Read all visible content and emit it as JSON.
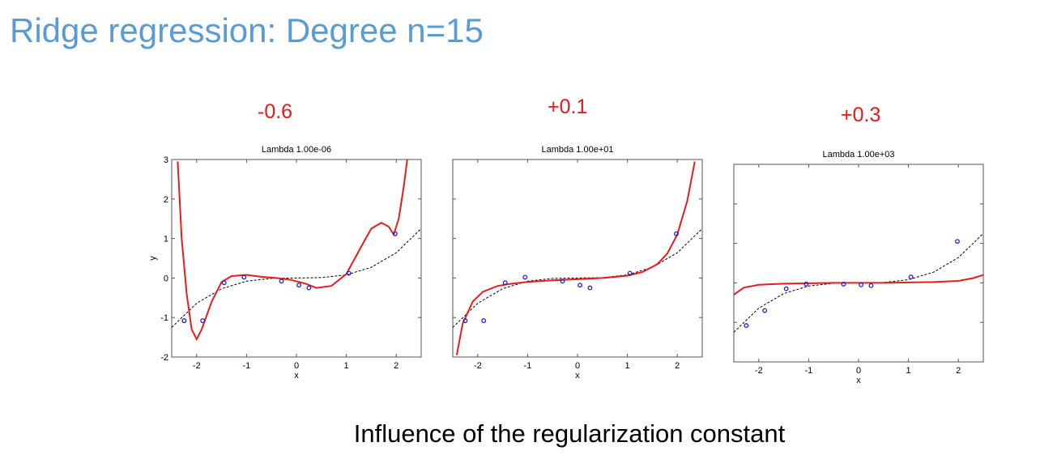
{
  "slide": {
    "title": "Ridge regression: Degree n=15",
    "caption": "Influence of the regularization constant"
  },
  "colors": {
    "title": "#5b9bd5",
    "fit": "#e81c1c",
    "truth": "#000000",
    "points": "#1f1fd6",
    "score": "#e81c1c"
  },
  "scores": [
    "-0.6",
    "+0.1",
    "+0.3"
  ],
  "chart_data": [
    {
      "type": "line",
      "title": "Lambda 1.00e-06",
      "xlabel": "x",
      "ylabel": "y",
      "xlim": [
        -2.5,
        2.5
      ],
      "ylim": [
        -2,
        3
      ],
      "xticks": [
        -2,
        -1,
        0,
        1,
        2
      ],
      "yticks": [
        -2,
        -1,
        0,
        1,
        2,
        3
      ],
      "points": {
        "x": [
          -2.25,
          -1.88,
          -1.45,
          -1.05,
          -0.3,
          0.05,
          0.25,
          1.05,
          1.98
        ],
        "y": [
          -1.08,
          -1.08,
          -0.12,
          0.02,
          -0.08,
          -0.18,
          -0.25,
          0.12,
          1.12
        ]
      },
      "series": [
        {
          "style": "dashed",
          "x": [
            -2.5,
            -2.0,
            -1.5,
            -1.0,
            -0.5,
            0.0,
            0.5,
            1.0,
            1.5,
            2.0,
            2.5
          ],
          "y": [
            -1.25,
            -0.64,
            -0.27,
            -0.08,
            -0.01,
            0.0,
            0.01,
            0.08,
            0.27,
            0.64,
            1.25
          ]
        },
        {
          "style": "solid",
          "x": [
            -2.38,
            -2.3,
            -2.2,
            -2.1,
            -2.0,
            -1.9,
            -1.7,
            -1.5,
            -1.3,
            -1.0,
            -0.7,
            -0.4,
            -0.1,
            0.2,
            0.4,
            0.7,
            1.0,
            1.3,
            1.5,
            1.7,
            1.85,
            1.95,
            2.05,
            2.15,
            2.22
          ],
          "y": [
            2.95,
            1.0,
            -0.4,
            -1.3,
            -1.55,
            -1.3,
            -0.6,
            -0.1,
            0.05,
            0.08,
            0.03,
            0.0,
            -0.05,
            -0.15,
            -0.25,
            -0.2,
            0.1,
            0.8,
            1.25,
            1.4,
            1.3,
            1.1,
            1.5,
            2.3,
            3.0
          ]
        }
      ]
    },
    {
      "type": "line",
      "title": "Lambda 1.00e+01",
      "xlabel": "x",
      "ylabel": "",
      "xlim": [
        -2.5,
        2.5
      ],
      "ylim": [
        -2,
        3
      ],
      "xticks": [
        -2,
        -1,
        0,
        1,
        2
      ],
      "yticks": [
        -2,
        -1,
        0,
        1,
        2,
        3
      ],
      "points": {
        "x": [
          -2.25,
          -1.88,
          -1.45,
          -1.05,
          -0.3,
          0.05,
          0.25,
          1.05,
          1.98
        ],
        "y": [
          -1.08,
          -1.08,
          -0.12,
          0.02,
          -0.08,
          -0.18,
          -0.25,
          0.12,
          1.12
        ]
      },
      "series": [
        {
          "style": "dashed",
          "x": [
            -2.5,
            -2.0,
            -1.5,
            -1.0,
            -0.5,
            0.0,
            0.5,
            1.0,
            1.5,
            2.0,
            2.5
          ],
          "y": [
            -1.25,
            -0.64,
            -0.27,
            -0.08,
            -0.01,
            0.0,
            0.01,
            0.08,
            0.27,
            0.64,
            1.25
          ]
        },
        {
          "style": "solid",
          "x": [
            -2.42,
            -2.3,
            -2.1,
            -1.9,
            -1.6,
            -1.3,
            -1.0,
            -0.5,
            0.0,
            0.5,
            1.0,
            1.3,
            1.6,
            1.8,
            2.0,
            2.2,
            2.35
          ],
          "y": [
            -1.95,
            -1.15,
            -0.6,
            -0.35,
            -0.2,
            -0.14,
            -0.1,
            -0.06,
            -0.03,
            0.0,
            0.06,
            0.15,
            0.35,
            0.62,
            1.1,
            1.95,
            2.95
          ]
        }
      ]
    },
    {
      "type": "line",
      "title": "Lambda 1.00e+03",
      "xlabel": "x",
      "ylabel": "",
      "xlim": [
        -2.5,
        2.5
      ],
      "ylim": [
        -2,
        3
      ],
      "xticks": [
        -2,
        -1,
        0,
        1,
        2
      ],
      "yticks": [
        -2,
        -1,
        0,
        1,
        2,
        3
      ],
      "points": {
        "x": [
          -2.25,
          -1.88,
          -1.45,
          -1.05,
          -0.3,
          0.05,
          0.25,
          1.05,
          1.98
        ],
        "y": [
          -1.08,
          -0.7,
          -0.15,
          -0.03,
          -0.03,
          -0.05,
          -0.07,
          0.15,
          1.05
        ]
      },
      "series": [
        {
          "style": "dashed",
          "x": [
            -2.5,
            -2.0,
            -1.5,
            -1.0,
            -0.5,
            0.0,
            0.5,
            1.0,
            1.5,
            2.0,
            2.5
          ],
          "y": [
            -1.25,
            -0.64,
            -0.27,
            -0.08,
            -0.01,
            0.0,
            0.01,
            0.08,
            0.27,
            0.64,
            1.25
          ]
        },
        {
          "style": "solid",
          "x": [
            -2.5,
            -2.3,
            -2.0,
            -1.5,
            -1.0,
            -0.5,
            0.0,
            0.5,
            1.0,
            1.5,
            2.0,
            2.3,
            2.5
          ],
          "y": [
            -0.3,
            -0.12,
            -0.05,
            -0.02,
            -0.01,
            0.0,
            0.0,
            0.0,
            0.01,
            0.02,
            0.05,
            0.12,
            0.2
          ]
        }
      ]
    }
  ]
}
